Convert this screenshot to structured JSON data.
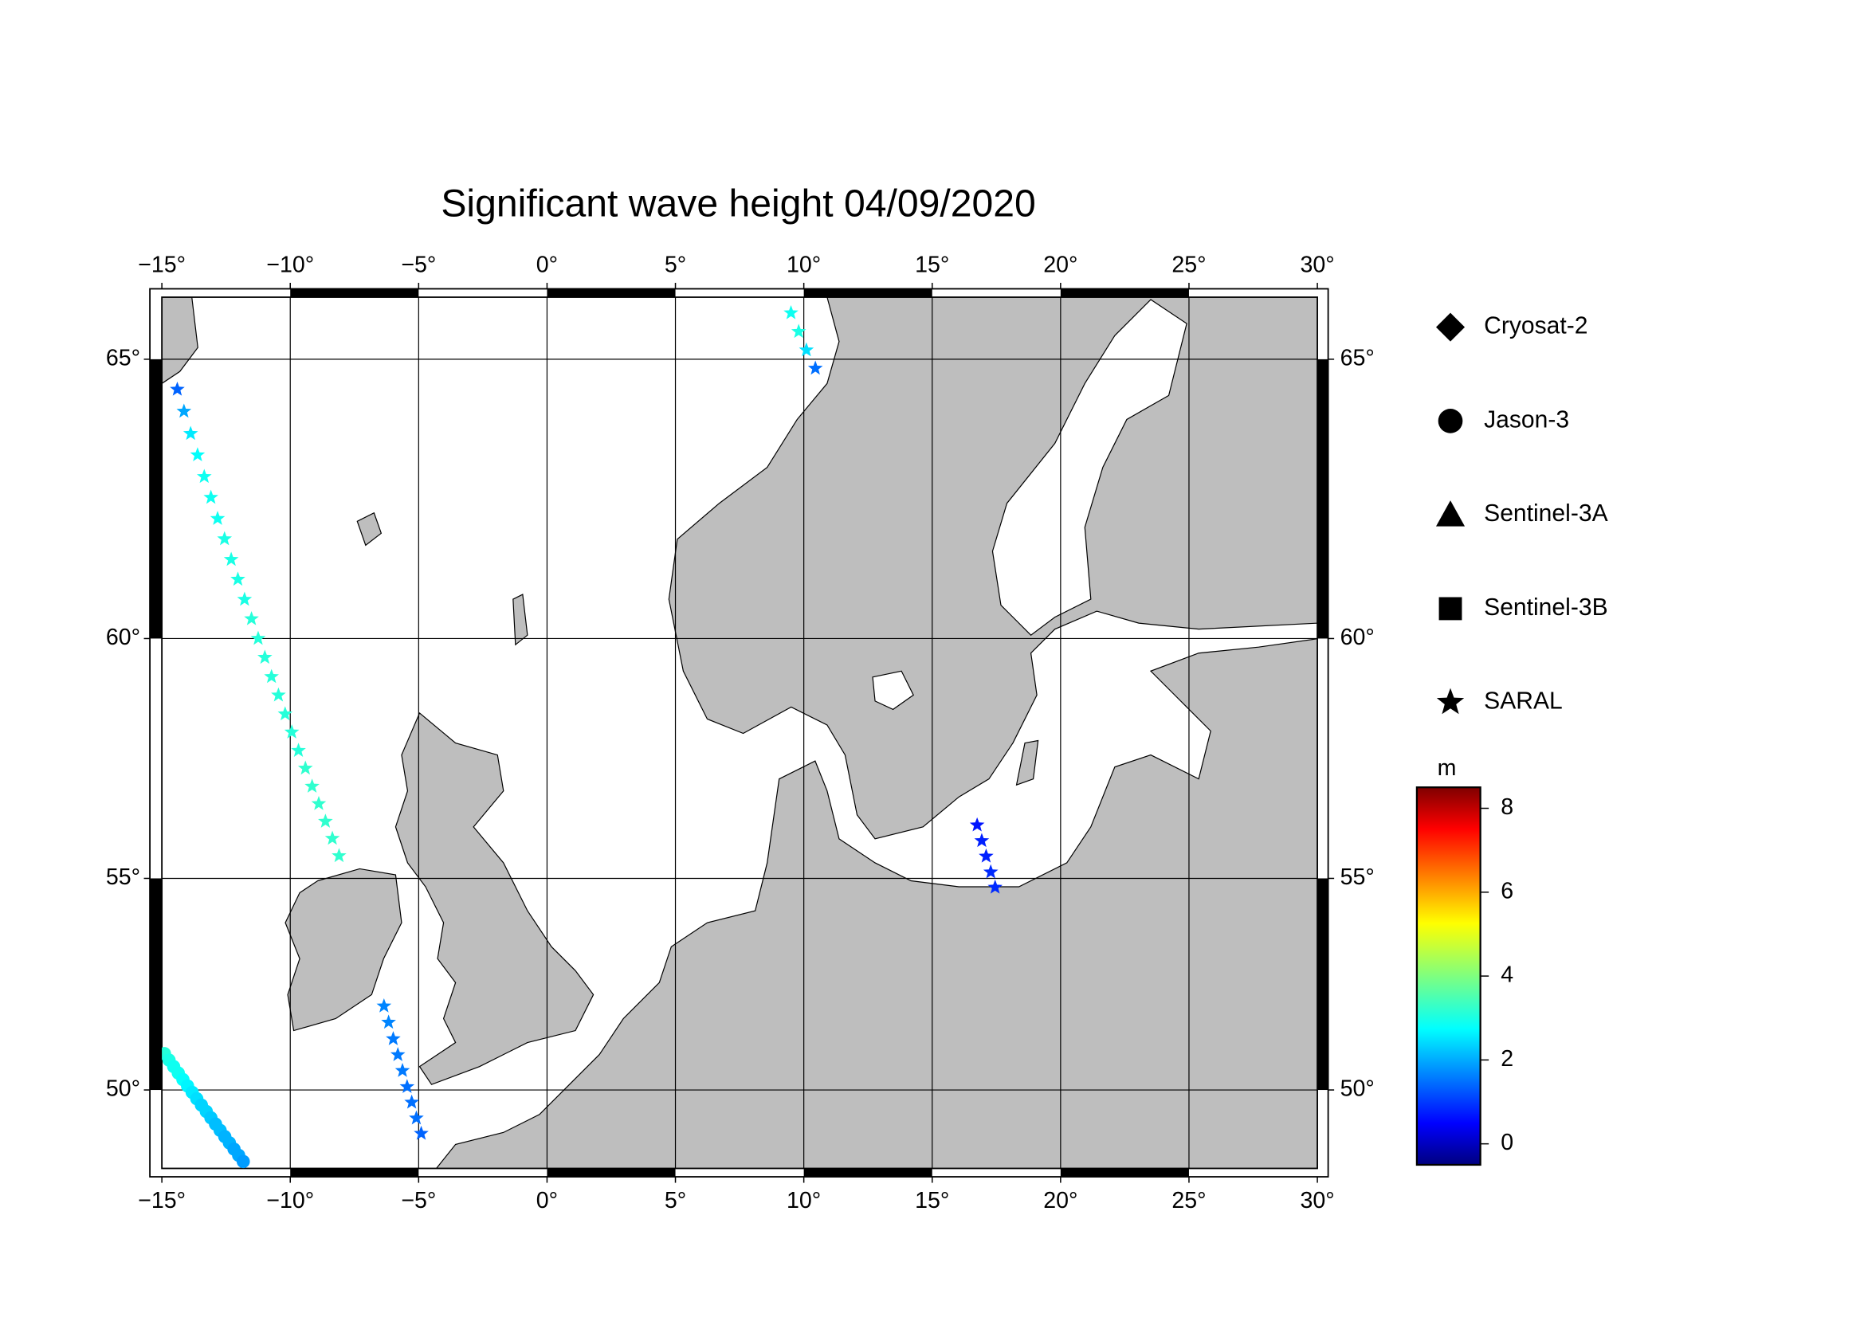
{
  "chart_data": {
    "type": "map",
    "title": "Significant wave height 04/09/2020",
    "projection": "mercator",
    "xlim": [
      -15,
      30
    ],
    "ylim": [
      48,
      66
    ],
    "xticks": [
      {
        "value": -15,
        "label": "−15°"
      },
      {
        "value": -10,
        "label": "−10°"
      },
      {
        "value": -5,
        "label": "−5°"
      },
      {
        "value": 0,
        "label": "0°"
      },
      {
        "value": 5,
        "label": "5°"
      },
      {
        "value": 10,
        "label": "10°"
      },
      {
        "value": 15,
        "label": "15°"
      },
      {
        "value": 20,
        "label": "20°"
      },
      {
        "value": 25,
        "label": "25°"
      },
      {
        "value": 30,
        "label": "30°"
      }
    ],
    "yticks": [
      {
        "value": 50,
        "label": "50°"
      },
      {
        "value": 55,
        "label": "55°"
      },
      {
        "value": 60,
        "label": "60°"
      },
      {
        "value": 65,
        "label": "65°"
      }
    ],
    "grid": true,
    "legend": [
      {
        "name": "Cryosat-2",
        "marker": "diamond"
      },
      {
        "name": "Jason-3",
        "marker": "circle"
      },
      {
        "name": "Sentinel-3A",
        "marker": "triangle"
      },
      {
        "name": "Sentinel-3B",
        "marker": "square"
      },
      {
        "name": "SARAL",
        "marker": "star"
      }
    ],
    "colorbar": {
      "label": "m",
      "colormap": "jet",
      "lim": [
        -0.5,
        8.5
      ],
      "ticks": [
        0,
        2,
        4,
        6,
        8
      ]
    },
    "tracks": [
      {
        "marker": "star",
        "lon": [
          -14.4,
          -14.14,
          -13.88,
          -13.61,
          -13.35,
          -13.09,
          -12.83,
          -12.56,
          -12.3,
          -12.04,
          -11.78,
          -11.51,
          -11.25,
          -10.99,
          -10.73,
          -10.46,
          -10.2,
          -9.94,
          -9.68,
          -9.41,
          -9.15,
          -8.89,
          -8.63,
          -8.36,
          -8.1
        ],
        "lat": [
          64.5,
          64.13,
          63.75,
          63.38,
          63.0,
          62.63,
          62.25,
          61.88,
          61.5,
          61.13,
          60.75,
          60.38,
          60.0,
          59.63,
          59.25,
          58.88,
          58.5,
          58.13,
          57.75,
          57.38,
          57.0,
          56.63,
          56.25,
          55.88,
          55.5
        ],
        "swh": [
          1.5,
          2.1,
          2.7,
          2.9,
          3.0,
          3.0,
          3.0,
          3.1,
          3.1,
          3.1,
          3.1,
          3.2,
          3.2,
          3.2,
          3.2,
          3.2,
          3.2,
          3.2,
          3.2,
          3.3,
          3.3,
          3.3,
          3.3,
          3.3,
          3.3
        ]
      },
      {
        "marker": "star",
        "lon": [
          9.5,
          9.8,
          10.1,
          10.45
        ],
        "lat": [
          65.75,
          65.45,
          65.15,
          64.85
        ],
        "swh": [
          3.0,
          3.1,
          2.6,
          1.6
        ]
      },
      {
        "marker": "star",
        "lon": [
          -6.35,
          -6.17,
          -5.99,
          -5.81,
          -5.63,
          -5.45,
          -5.27,
          -5.09,
          -4.9
        ],
        "lat": [
          52.05,
          51.66,
          51.26,
          50.87,
          50.48,
          50.08,
          49.69,
          49.29,
          48.9
        ],
        "swh": [
          1.8,
          1.8,
          1.7,
          1.7,
          1.7,
          1.6,
          1.6,
          1.6,
          1.5
        ]
      },
      {
        "marker": "star",
        "lon": [
          16.75,
          16.93,
          17.1,
          17.28,
          17.45
        ],
        "lat": [
          56.17,
          55.83,
          55.49,
          55.14,
          54.8
        ],
        "swh": [
          0.8,
          0.9,
          0.9,
          1.0,
          1.0
        ]
      },
      {
        "marker": "circle",
        "lon": [
          -14.9,
          -14.72,
          -14.54,
          -14.36,
          -14.18,
          -14.0,
          -13.82,
          -13.64,
          -13.46,
          -13.27,
          -13.09,
          -12.91,
          -12.73,
          -12.55,
          -12.37,
          -12.19,
          -12.01,
          -11.83
        ],
        "lat": [
          50.9,
          50.74,
          50.58,
          50.42,
          50.26,
          50.1,
          49.94,
          49.78,
          49.62,
          49.46,
          49.3,
          49.14,
          48.98,
          48.82,
          48.66,
          48.5,
          48.34,
          48.18
        ],
        "swh": [
          3.2,
          3.1,
          3.0,
          3.0,
          2.9,
          2.8,
          2.7,
          2.6,
          2.5,
          2.5,
          2.4,
          2.3,
          2.3,
          2.2,
          2.2,
          2.1,
          2.1,
          2.0
        ]
      }
    ]
  }
}
